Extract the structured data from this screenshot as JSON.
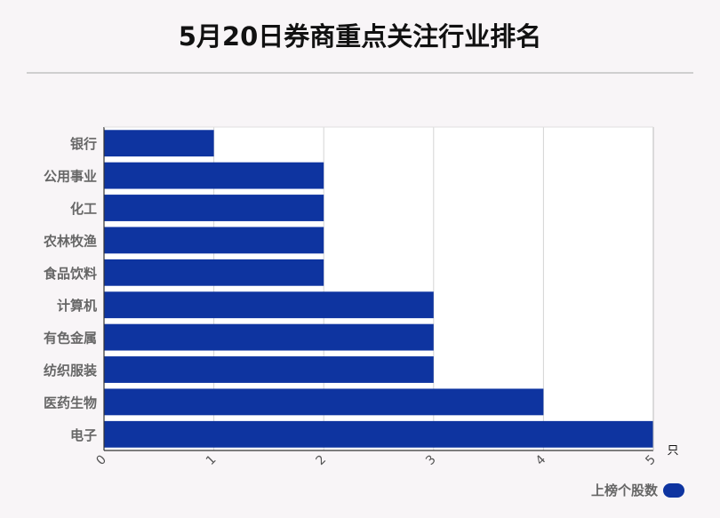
{
  "chart_data": {
    "type": "bar",
    "orientation": "horizontal",
    "title": "5月20日券商重点关注行业排名",
    "categories": [
      "银行",
      "公用事业",
      "化工",
      "农林牧渔",
      "食品饮料",
      "计算机",
      "有色金属",
      "纺织服装",
      "医药生物",
      "电子"
    ],
    "series": [
      {
        "name": "上榜个股数",
        "values": [
          1,
          2,
          2,
          2,
          2,
          3,
          3,
          3,
          4,
          5
        ],
        "color": "#0e34a0"
      }
    ],
    "xlim": [
      0,
      5
    ],
    "xticks": [
      "0",
      "1",
      "2",
      "3",
      "4",
      "5"
    ],
    "x_unit": "只",
    "grid": true,
    "legend_position": "bottom-right"
  }
}
